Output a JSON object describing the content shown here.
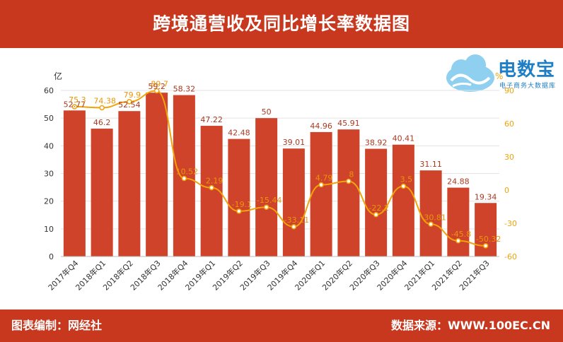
{
  "title": "跨境通营收及同比增长率数据图",
  "footer": {
    "source_left": "图表编制：网经社",
    "source_right": "数据来源：WWW.100EC.CN"
  },
  "logo": {
    "name": "电数宝",
    "sub": "电子商务大数据库"
  },
  "colors": {
    "header": "#c8381f",
    "bar": "#d0432b",
    "line": "#f0a30a",
    "line_label": "#e8960a",
    "bar_label": "#a83a22"
  },
  "chart_data": {
    "type": "bar",
    "title": "跨境通营收及同比增长率数据图",
    "categories": [
      "2017年Q4",
      "2018年Q1",
      "2018年Q2",
      "2018年Q3",
      "2018年Q4",
      "2019年Q1",
      "2019年Q2",
      "2019年Q3",
      "2019年Q4",
      "2020年Q1",
      "2020年Q2",
      "2020年Q3",
      "2020年Q4",
      "2021年Q1",
      "2021年Q2",
      "2021年Q3"
    ],
    "y_left": {
      "unit": "亿",
      "ticks": [
        0,
        10,
        20,
        30,
        40,
        50,
        60
      ],
      "range": [
        0,
        60
      ]
    },
    "y_right": {
      "unit": "%",
      "ticks": [
        -60,
        -30,
        0,
        30,
        60,
        90
      ],
      "range": [
        -60,
        90
      ]
    },
    "grid": true,
    "series": [
      {
        "type": "bar",
        "axis": "left",
        "values": [
          52.77,
          46.2,
          52.54,
          59.2,
          58.32,
          47.22,
          42.48,
          50,
          39.01,
          44.96,
          45.91,
          38.92,
          40.41,
          31.11,
          24.88,
          19.34
        ],
        "labels": [
          "52.77",
          "46.2",
          "52.54",
          "59.2",
          "58.32",
          "47.22",
          "42.48",
          "50",
          "39.01",
          "44.96",
          "45.91",
          "38.92",
          "40.41",
          "31.11",
          "24.88",
          "19.34"
        ]
      },
      {
        "type": "line",
        "axis": "right",
        "values": [
          75.3,
          74.38,
          79.9,
          89.7,
          10.52,
          2.19,
          -19.1,
          -15.44,
          -33.11,
          4.79,
          8,
          -22.2,
          3.5,
          -30.81,
          -45.8,
          -50.32
        ],
        "labels": [
          "75.3",
          "74.38",
          "79.9",
          "89.7",
          "10.52",
          "2.19",
          "-19.1",
          "-15.44",
          "-33.11",
          "4.79",
          "8",
          "-22.2",
          "3.5",
          "-30.81",
          "-45.8",
          "-50.32"
        ]
      }
    ]
  }
}
